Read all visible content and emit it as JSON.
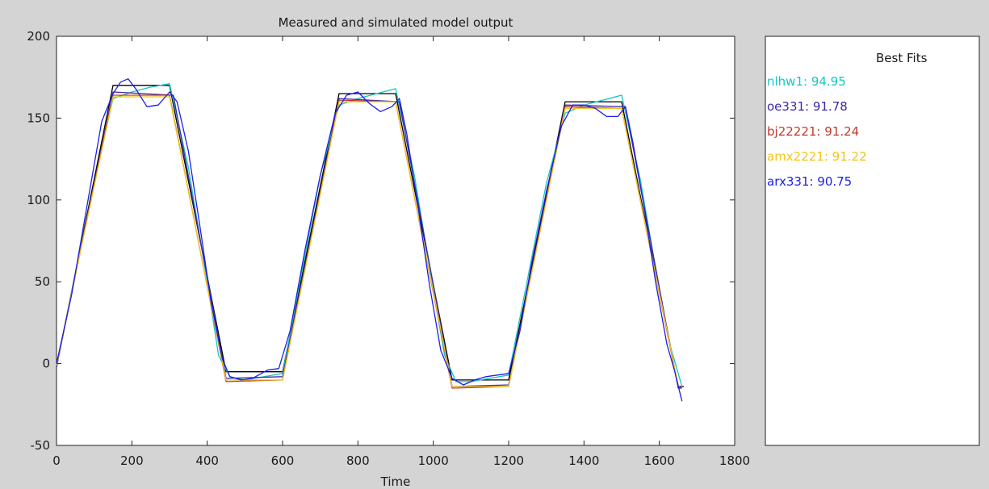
{
  "chart_data": {
    "type": "line",
    "title": "Measured and simulated model output",
    "xlabel": "Time",
    "ylabel": "",
    "xlim": [
      0,
      1800
    ],
    "ylim": [
      -50,
      200
    ],
    "xticks": [
      0,
      200,
      400,
      600,
      800,
      1000,
      1200,
      1400,
      1600,
      1800
    ],
    "yticks": [
      -50,
      0,
      50,
      100,
      150,
      200
    ],
    "grid": false,
    "legend": {
      "title": "Best Fits",
      "placement": "right-panel",
      "entries": [
        {
          "label": "nlhw1: 94.95",
          "color": "#17c5c5"
        },
        {
          "label": "oe331: 91.78",
          "color": "#3a2aa8"
        },
        {
          "label": "bj22221: 91.24",
          "color": "#c0392b"
        },
        {
          "label": "amx2221: 91.22",
          "color": "#f2c418"
        },
        {
          "label": "arx331: 90.75",
          "color": "#1e1ee8"
        }
      ]
    },
    "series": [
      {
        "color": "#000000",
        "x": [
          0,
          150,
          300,
          450,
          600,
          750,
          900,
          1050,
          1200,
          1350,
          1500,
          1650,
          1665
        ],
        "y": [
          -2,
          170,
          170,
          -5,
          -5,
          165,
          165,
          -10,
          -10,
          160,
          160,
          -14,
          -14
        ]
      },
      {
        "color": "#17c5c5",
        "x": [
          0,
          50,
          100,
          150,
          200,
          250,
          300,
          350,
          400,
          430,
          460,
          500,
          600,
          700,
          750,
          800,
          900,
          950,
          1000,
          1030,
          1060,
          1100,
          1200,
          1300,
          1350,
          1400,
          1500,
          1550,
          1600,
          1630,
          1660
        ],
        "y": [
          -2,
          55,
          110,
          162,
          166,
          169,
          171,
          120,
          50,
          5,
          -8,
          -10,
          -6,
          115,
          158,
          162,
          168,
          115,
          45,
          5,
          -11,
          -11,
          -7,
          110,
          153,
          158,
          164,
          112,
          45,
          10,
          -14
        ]
      },
      {
        "color": "#3a2aa8",
        "x": [
          0,
          150,
          310,
          450,
          600,
          750,
          910,
          1050,
          1200,
          1350,
          1510,
          1650,
          1660
        ],
        "y": [
          -2,
          166,
          164,
          -9,
          -8,
          162,
          160,
          -14,
          -13,
          158,
          157,
          -15,
          -15
        ]
      },
      {
        "color": "#c0392b",
        "x": [
          0,
          150,
          300,
          450,
          600,
          750,
          900,
          1050,
          1200,
          1350,
          1500,
          1650,
          1660
        ],
        "y": [
          -1,
          164,
          164,
          -11,
          -10,
          161,
          160,
          -15,
          -14,
          157,
          156,
          -14,
          -15
        ]
      },
      {
        "color": "#f2c418",
        "x": [
          0,
          150,
          300,
          450,
          600,
          750,
          900,
          1050,
          1200,
          1350,
          1500,
          1650
        ],
        "y": [
          -1,
          163,
          163,
          -10,
          -10,
          160,
          160,
          -14,
          -14,
          156,
          156,
          -13
        ]
      },
      {
        "color": "#1e1ee8",
        "x": [
          0,
          40,
          80,
          120,
          150,
          170,
          190,
          210,
          240,
          270,
          300,
          320,
          350,
          380,
          410,
          440,
          460,
          490,
          520,
          560,
          590,
          620,
          660,
          700,
          740,
          770,
          800,
          830,
          860,
          890,
          910,
          930,
          960,
          990,
          1020,
          1050,
          1080,
          1110,
          1140,
          1170,
          1200,
          1230,
          1260,
          1300,
          1340,
          1370,
          1400,
          1430,
          1460,
          1490,
          1510,
          1530,
          1560,
          1590,
          1620,
          1640,
          1660
        ],
        "y": [
          0,
          42,
          95,
          148,
          165,
          172,
          174,
          168,
          157,
          158,
          166,
          160,
          130,
          85,
          38,
          3,
          -8,
          -10,
          -9,
          -4,
          -3,
          20,
          70,
          115,
          153,
          164,
          166,
          159,
          154,
          157,
          162,
          140,
          95,
          48,
          8,
          -9,
          -13,
          -10,
          -8,
          -7,
          -6,
          20,
          60,
          105,
          145,
          158,
          158,
          156,
          151,
          151,
          157,
          135,
          95,
          50,
          12,
          -4,
          -23
        ]
      }
    ]
  }
}
